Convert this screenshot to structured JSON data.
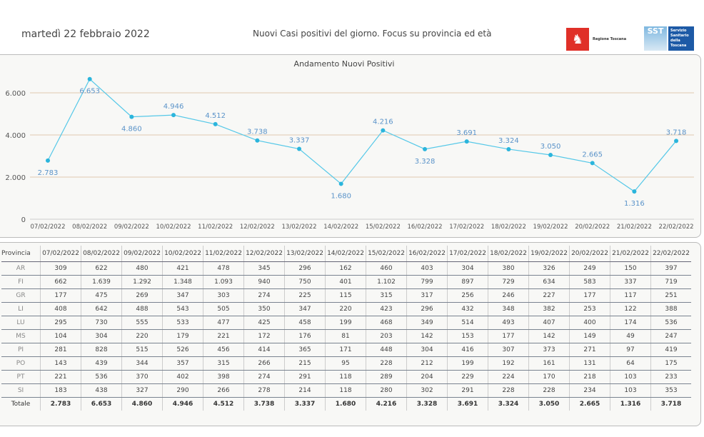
{
  "header": {
    "date": "martedì 22 febbraio 2022",
    "subtitle": "Nuovi Casi positivi del giorno. Focus su provincia ed età",
    "logo_rt": "Regione Toscana",
    "logo_sst": "SST",
    "logo_sst_text": "Servizio Sanitario della Toscana"
  },
  "colors": {
    "line": "#55c8e8",
    "point": "#2bb5dc",
    "label": "#5a93c9",
    "grid": "#e0c8b0"
  },
  "chart_data": {
    "type": "line",
    "title": "Andamento Nuovi Positivi",
    "categories": [
      "07/02/2022",
      "08/02/2022",
      "09/02/2022",
      "10/02/2022",
      "11/02/2022",
      "12/02/2022",
      "13/02/2022",
      "14/02/2022",
      "15/02/2022",
      "16/02/2022",
      "17/02/2022",
      "18/02/2022",
      "19/02/2022",
      "20/02/2022",
      "21/02/2022",
      "22/02/2022"
    ],
    "values": [
      2783,
      6653,
      4860,
      4946,
      4512,
      3738,
      3337,
      1680,
      4216,
      3328,
      3691,
      3324,
      3050,
      2665,
      1316,
      3718
    ],
    "value_labels": [
      "2.783",
      "6.653",
      "4.860",
      "4.946",
      "4.512",
      "3.738",
      "3.337",
      "1.680",
      "4.216",
      "3.328",
      "3.691",
      "3.324",
      "3.050",
      "2.665",
      "1.316",
      "3.718"
    ],
    "yticks": [
      0,
      2000,
      4000,
      6000
    ],
    "ytick_labels": [
      "0",
      "2.000",
      "4.000",
      "6.000"
    ],
    "ylim": [
      0,
      6800
    ],
    "grid": true
  },
  "table": {
    "header": "Provincia",
    "rows": [
      {
        "name": "AR",
        "values": [
          "309",
          "622",
          "480",
          "421",
          "478",
          "345",
          "296",
          "162",
          "460",
          "403",
          "304",
          "380",
          "326",
          "249",
          "150",
          "397"
        ]
      },
      {
        "name": "FI",
        "values": [
          "662",
          "1.639",
          "1.292",
          "1.348",
          "1.093",
          "940",
          "750",
          "401",
          "1.102",
          "799",
          "897",
          "729",
          "634",
          "583",
          "337",
          "719"
        ]
      },
      {
        "name": "GR",
        "values": [
          "177",
          "475",
          "269",
          "347",
          "303",
          "274",
          "225",
          "115",
          "315",
          "317",
          "256",
          "246",
          "227",
          "177",
          "117",
          "251"
        ]
      },
      {
        "name": "LI",
        "values": [
          "408",
          "642",
          "488",
          "543",
          "505",
          "350",
          "347",
          "220",
          "423",
          "296",
          "432",
          "348",
          "382",
          "253",
          "122",
          "388"
        ]
      },
      {
        "name": "LU",
        "values": [
          "295",
          "730",
          "555",
          "533",
          "477",
          "425",
          "458",
          "199",
          "468",
          "349",
          "514",
          "493",
          "407",
          "400",
          "174",
          "536"
        ]
      },
      {
        "name": "MS",
        "values": [
          "104",
          "304",
          "220",
          "179",
          "221",
          "172",
          "176",
          "81",
          "203",
          "142",
          "153",
          "177",
          "142",
          "149",
          "49",
          "247"
        ]
      },
      {
        "name": "PI",
        "values": [
          "281",
          "828",
          "515",
          "526",
          "456",
          "414",
          "365",
          "171",
          "448",
          "304",
          "416",
          "307",
          "373",
          "271",
          "97",
          "419"
        ]
      },
      {
        "name": "PO",
        "values": [
          "143",
          "439",
          "344",
          "357",
          "315",
          "266",
          "215",
          "95",
          "228",
          "212",
          "199",
          "192",
          "161",
          "131",
          "64",
          "175"
        ]
      },
      {
        "name": "PT",
        "values": [
          "221",
          "536",
          "370",
          "402",
          "398",
          "274",
          "291",
          "118",
          "289",
          "204",
          "229",
          "224",
          "170",
          "218",
          "103",
          "233"
        ]
      },
      {
        "name": "SI",
        "values": [
          "183",
          "438",
          "327",
          "290",
          "266",
          "278",
          "214",
          "118",
          "280",
          "302",
          "291",
          "228",
          "228",
          "234",
          "103",
          "353"
        ]
      }
    ],
    "total": {
      "name": "Totale",
      "values": [
        "2.783",
        "6.653",
        "4.860",
        "4.946",
        "4.512",
        "3.738",
        "3.337",
        "1.680",
        "4.216",
        "3.328",
        "3.691",
        "3.324",
        "3.050",
        "2.665",
        "1.316",
        "3.718"
      ]
    }
  }
}
